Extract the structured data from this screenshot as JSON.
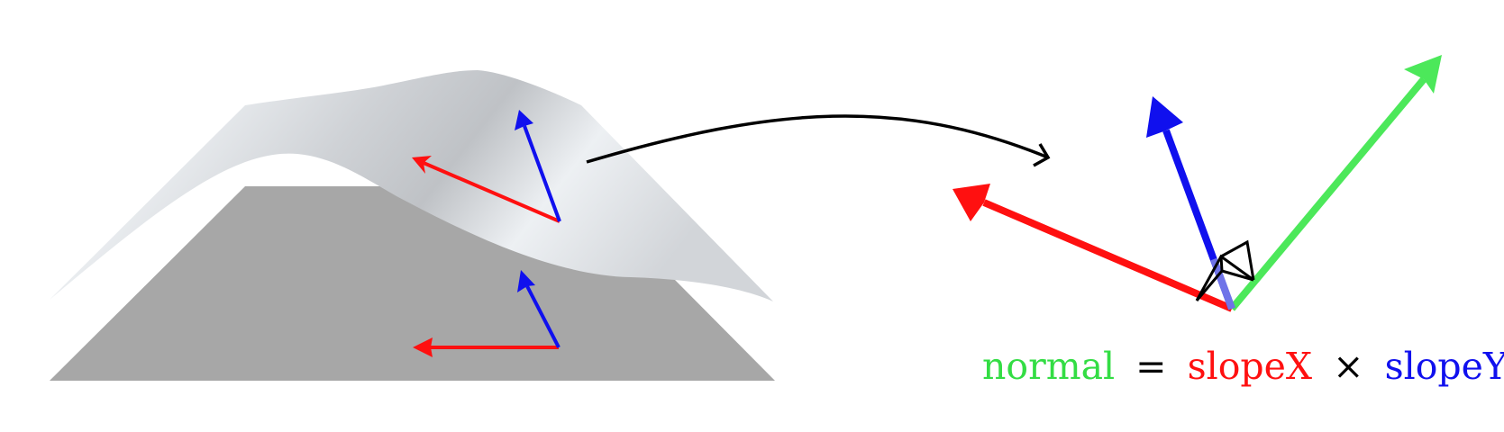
{
  "colors": {
    "plane": "#a7a7a7",
    "surface_light": "#eef1f4",
    "surface_dark": "#c3c6ca",
    "slope_x": "#ff1010",
    "slope_y": "#1010ee",
    "normal": "#4ce85a",
    "arrow": "#000000"
  },
  "icons": [
    "curved-arrow-icon",
    "right-angle-marker-icon"
  ],
  "equation": {
    "normal": "normal",
    "equals": "=",
    "slope_x": "slopeX",
    "cross": "×",
    "slope_y": "slopeY"
  }
}
